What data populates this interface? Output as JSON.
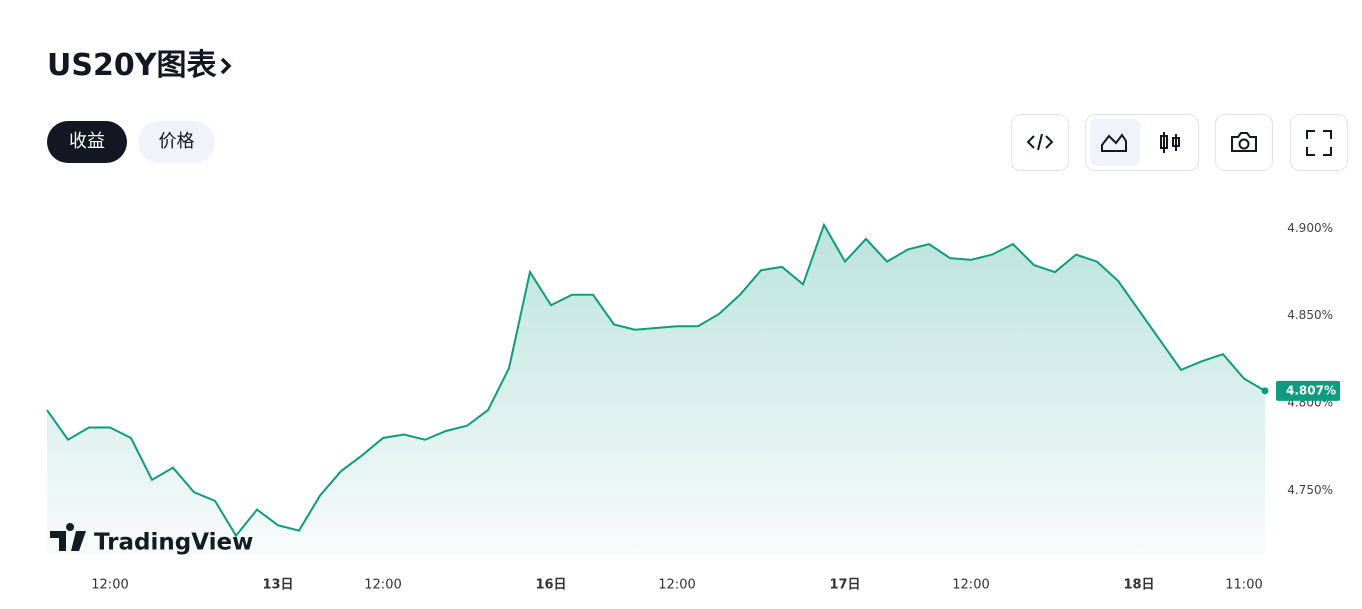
{
  "header": {
    "title": "US20Y图表"
  },
  "tabs": [
    "收益",
    "价格"
  ],
  "watermark": "TradingView",
  "chart_data": {
    "type": "area",
    "color": "#0e9c81",
    "categories": [
      null,
      null,
      null,
      "12:00",
      null,
      null,
      null,
      null,
      null,
      null,
      null,
      "13日",
      null,
      null,
      null,
      null,
      "12:00",
      null,
      null,
      null,
      null,
      null,
      null,
      null,
      "16日",
      null,
      null,
      null,
      null,
      null,
      "12:00",
      null,
      null,
      null,
      null,
      null,
      null,
      null,
      "17日",
      null,
      null,
      null,
      null,
      null,
      "12:00",
      null,
      null,
      null,
      null,
      null,
      null,
      null,
      "18日",
      null,
      null,
      null,
      null,
      "11:00",
      null
    ],
    "values": [
      4.796,
      4.779,
      4.786,
      4.786,
      4.78,
      4.756,
      4.763,
      4.749,
      4.744,
      4.724,
      4.739,
      4.73,
      4.727,
      4.747,
      4.761,
      4.77,
      4.78,
      4.782,
      4.779,
      4.784,
      4.787,
      4.796,
      4.82,
      4.875,
      4.856,
      4.862,
      4.862,
      4.845,
      4.842,
      4.843,
      4.844,
      4.844,
      4.851,
      4.862,
      4.876,
      4.878,
      4.868,
      4.902,
      4.881,
      4.894,
      4.881,
      4.888,
      4.891,
      4.883,
      4.882,
      4.885,
      4.891,
      4.879,
      4.875,
      4.885,
      4.881,
      4.87,
      4.853,
      4.836,
      4.819,
      4.824,
      4.828,
      4.814,
      4.807
    ],
    "value_labels": [
      null,
      null,
      null,
      null,
      null,
      null,
      null,
      null,
      null,
      null,
      null,
      null,
      null,
      null,
      null,
      null,
      null,
      null,
      null,
      null,
      null,
      null,
      null,
      null,
      null,
      null,
      null,
      null,
      null,
      null,
      null,
      null,
      null,
      null,
      null,
      null,
      null,
      null,
      null,
      null,
      null,
      null,
      null,
      null,
      null,
      null,
      null,
      null,
      null,
      null,
      null,
      null,
      null,
      null,
      null,
      null,
      null,
      null,
      "4.807%"
    ],
    "ylim": [
      4.713,
      4.922
    ],
    "yticks": [
      {
        "value": 4.75,
        "label": "4.750%"
      },
      {
        "value": 4.8,
        "label": "4.800%"
      },
      {
        "value": 4.85,
        "label": "4.850%"
      },
      {
        "value": 4.9,
        "label": "4.900%"
      }
    ]
  }
}
